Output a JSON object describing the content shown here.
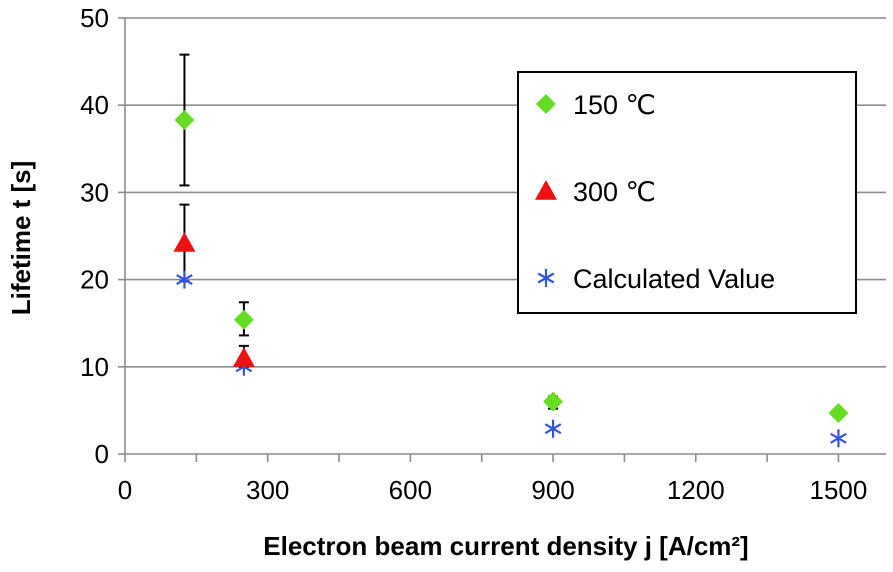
{
  "chart_data": {
    "type": "scatter",
    "xlabel": "Electron beam current density j [A/cm²]",
    "ylabel": "Lifetime t [s]",
    "xlim": [
      0,
      1600
    ],
    "ylim": [
      0,
      50
    ],
    "xticks": [
      0,
      300,
      600,
      900,
      1200,
      1500
    ],
    "yticks": [
      0,
      10,
      20,
      30,
      40,
      50
    ],
    "xtick_labels": [
      "0",
      "300",
      "600",
      "900",
      "1200",
      "1500"
    ],
    "ytick_labels": [
      "0",
      "10",
      "20",
      "30",
      "40",
      "50"
    ],
    "grid": "horizontal",
    "legend_position": "top-right",
    "series": [
      {
        "name": "150 ℃",
        "marker": "diamond",
        "color": "#66dd22",
        "points": [
          {
            "x": 125,
            "y": 38.3,
            "err_low": 30.8,
            "err_high": 45.8
          },
          {
            "x": 250,
            "y": 15.4,
            "err_low": 13.6,
            "err_high": 17.4
          },
          {
            "x": 900,
            "y": 6.0,
            "err_low": 5.2,
            "err_high": 6.6
          },
          {
            "x": 1500,
            "y": 4.7
          }
        ]
      },
      {
        "name": "300 ℃",
        "marker": "triangle",
        "color": "#ee1111",
        "points": [
          {
            "x": 125,
            "y": 24.2,
            "err_low": 19.8,
            "err_high": 28.6
          },
          {
            "x": 250,
            "y": 11.0,
            "err_low": 10.0,
            "err_high": 12.4
          }
        ]
      },
      {
        "name": "Calculated Value",
        "marker": "asterisk",
        "color": "#3355dd",
        "points": [
          {
            "x": 125,
            "y": 20.0
          },
          {
            "x": 250,
            "y": 10.0
          },
          {
            "x": 900,
            "y": 2.9
          },
          {
            "x": 1500,
            "y": 1.8
          }
        ]
      }
    ]
  }
}
